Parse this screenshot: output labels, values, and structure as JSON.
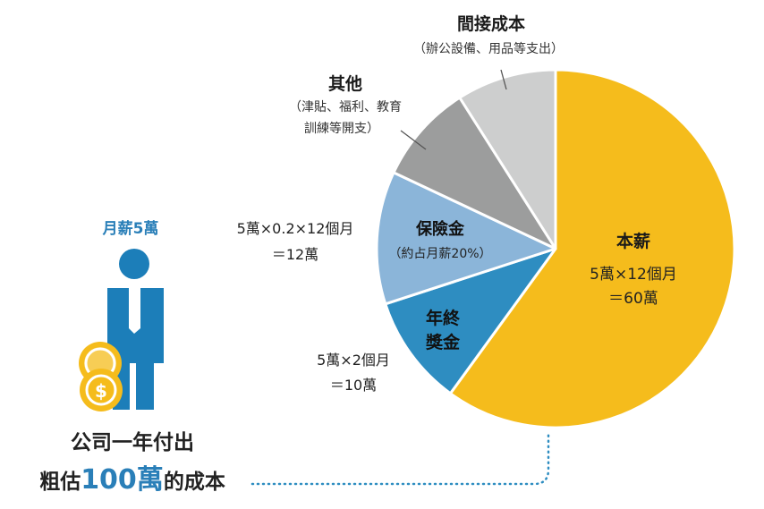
{
  "chart_data": {
    "type": "pie",
    "title": "",
    "unit": "萬",
    "total": 100,
    "slices": [
      {
        "name": "本薪",
        "formula": "5萬×12個月",
        "amount": "＝60萬",
        "value": 60,
        "color": "#F5BC1C"
      },
      {
        "name": "年終獎金",
        "name_lines": [
          "年終",
          "獎金"
        ],
        "formula": "5萬×2個月",
        "amount": "＝10萬",
        "value": 10,
        "color": "#2E8DC1"
      },
      {
        "name": "保險金",
        "sub": "（約占月薪20%）",
        "formula": "5萬×0.2×12個月",
        "amount": "＝12萬",
        "value": 12,
        "color": "#8BB5D9"
      },
      {
        "name": "其他",
        "sub_lines": [
          "（津貼、福利、教育",
          "訓練等開支）"
        ],
        "value": 9,
        "color": "#9C9D9D"
      },
      {
        "name": "間接成本",
        "sub": "（辦公設備、用品等支出）",
        "value": 9,
        "color": "#CDCECE"
      }
    ]
  },
  "figure": {
    "salary_label": "月薪5萬",
    "caption_line1": "公司一年付出",
    "caption_prefix": "粗估",
    "caption_number": "100萬",
    "caption_suffix": "的成本",
    "person_color": "#1C7EB9",
    "coin_color": "#F5BC1C",
    "coin_symbol": "$",
    "accent_blue": "#2A7FB8",
    "connector_color": "#2E8DC1"
  }
}
